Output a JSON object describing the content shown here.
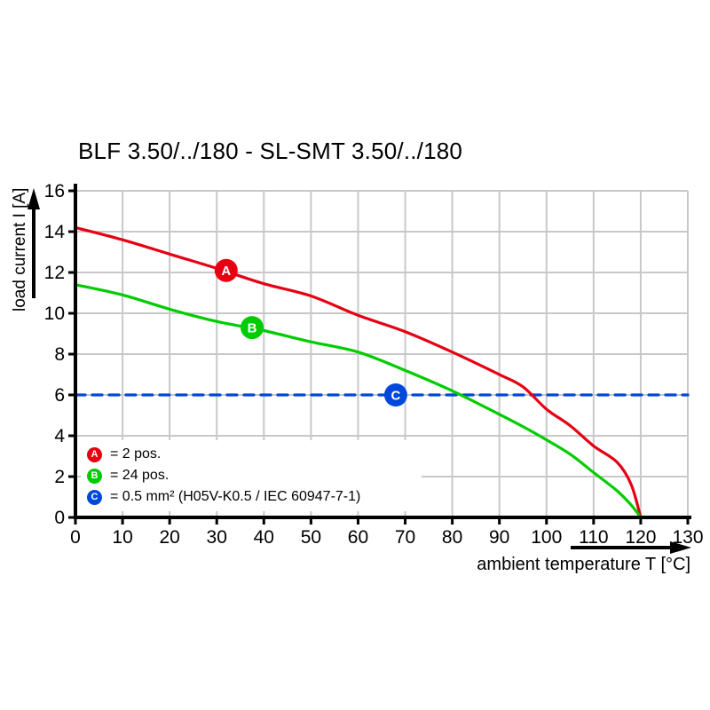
{
  "chart_data": {
    "type": "line",
    "title": "BLF 3.50/../180 - SL-SMT 3.50/../180",
    "xlabel": "ambient temperature T [°C]",
    "ylabel": "load current I [A]",
    "xlim": [
      0,
      130
    ],
    "ylim": [
      0,
      16
    ],
    "x_ticks": [
      0,
      10,
      20,
      30,
      40,
      50,
      60,
      70,
      80,
      90,
      100,
      110,
      120,
      130
    ],
    "y_ticks": [
      0,
      2,
      4,
      6,
      8,
      10,
      12,
      14,
      16
    ],
    "grid": true,
    "grid_color": "#c8c8c8",
    "axis_color": "#000000",
    "series": [
      {
        "name": "A",
        "label": "2 pos.",
        "color": "#e60012",
        "style": "solid",
        "points": [
          [
            0,
            14.2
          ],
          [
            10,
            13.6
          ],
          [
            20,
            12.9
          ],
          [
            30,
            12.2
          ],
          [
            40,
            11.45
          ],
          [
            50,
            10.85
          ],
          [
            60,
            9.9
          ],
          [
            70,
            9.1
          ],
          [
            80,
            8.1
          ],
          [
            90,
            7.0
          ],
          [
            95,
            6.4
          ],
          [
            100,
            5.3
          ],
          [
            105,
            4.5
          ],
          [
            110,
            3.5
          ],
          [
            115,
            2.7
          ],
          [
            118,
            1.6
          ],
          [
            120,
            0
          ]
        ]
      },
      {
        "name": "B",
        "label": "24 pos.",
        "color": "#00cc00",
        "style": "solid",
        "points": [
          [
            0,
            11.4
          ],
          [
            10,
            10.9
          ],
          [
            20,
            10.2
          ],
          [
            30,
            9.6
          ],
          [
            40,
            9.15
          ],
          [
            50,
            8.6
          ],
          [
            60,
            8.1
          ],
          [
            70,
            7.2
          ],
          [
            80,
            6.2
          ],
          [
            90,
            5.05
          ],
          [
            95,
            4.45
          ],
          [
            100,
            3.8
          ],
          [
            105,
            3.1
          ],
          [
            110,
            2.2
          ],
          [
            115,
            1.3
          ],
          [
            118,
            0.6
          ],
          [
            120,
            0
          ]
        ]
      },
      {
        "name": "C",
        "label": "0.5 mm² (H05V-K0.5 / IEC 60947-7-1)",
        "color": "#0048dc",
        "style": "dashed",
        "points": [
          [
            0,
            6
          ],
          [
            130,
            6
          ]
        ]
      }
    ],
    "markers": [
      {
        "letter": "A",
        "x": 32,
        "y": 12.1,
        "color": "#e60012"
      },
      {
        "letter": "B",
        "x": 37.5,
        "y": 9.3,
        "color": "#00cc00"
      },
      {
        "letter": "C",
        "x": 68,
        "y": 6,
        "color": "#0048dc"
      }
    ],
    "legend": {
      "position": "bottom-left",
      "items": [
        {
          "letter": "A",
          "text": "= 2 pos.",
          "color": "#e60012"
        },
        {
          "letter": "B",
          "text": "= 24 pos.",
          "color": "#00cc00"
        },
        {
          "letter": "C",
          "text": "= 0.5 mm² (H05V-K0.5 / IEC 60947-7-1)",
          "color": "#0048dc"
        }
      ]
    }
  }
}
